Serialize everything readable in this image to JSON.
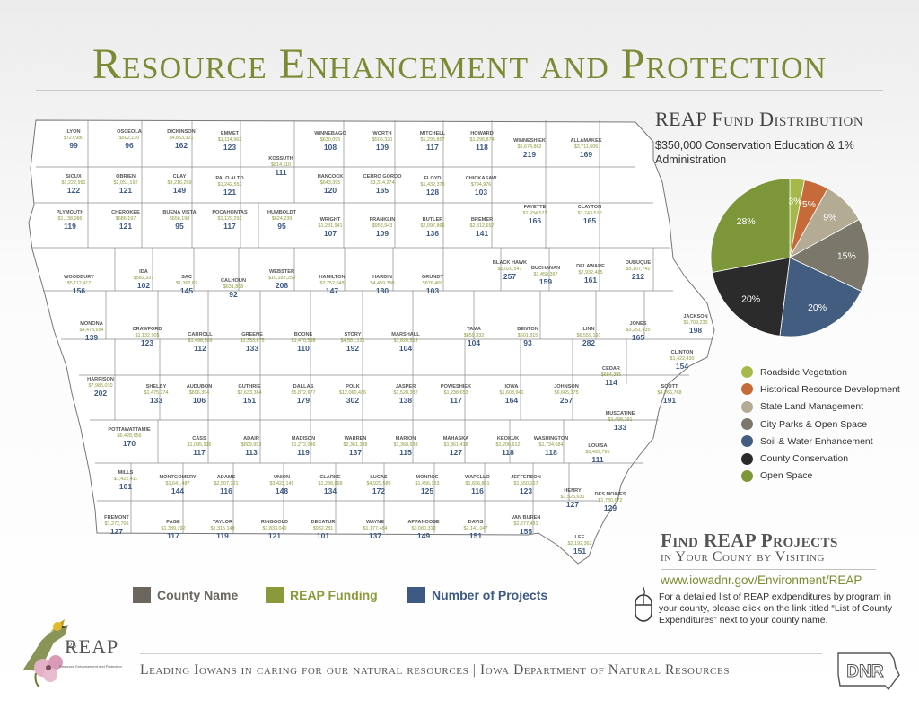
{
  "title": "Resource Enhancement and Protection",
  "colors": {
    "title": "#7d8a34",
    "county_name": "#555555",
    "funding": "#8a9a3a",
    "projects": "#3d5a85"
  },
  "map_legend": [
    {
      "label": "County Name",
      "color": "#6b675f"
    },
    {
      "label": "REAP Funding",
      "color": "#8a9a3a"
    },
    {
      "label": "Number of Projects",
      "color": "#3d5a85"
    }
  ],
  "counties": [
    {
      "name": "LYON",
      "funding": "$727,980",
      "projects": "99"
    },
    {
      "name": "OSCEOLA",
      "funding": "$502,130",
      "projects": "96"
    },
    {
      "name": "DICKINSON",
      "funding": "$4,853,321",
      "projects": "162"
    },
    {
      "name": "EMMET",
      "funding": "$1,114,962",
      "projects": "123"
    },
    {
      "name": "KOSSUTH",
      "funding": "$814,110",
      "projects": "111"
    },
    {
      "name": "WINNEBAGO",
      "funding": "$630,095",
      "projects": "108"
    },
    {
      "name": "WORTH",
      "funding": "$505,320",
      "projects": "109"
    },
    {
      "name": "MITCHELL",
      "funding": "$1,295,857",
      "projects": "117"
    },
    {
      "name": "HOWARD",
      "funding": "$1,296,874",
      "projects": "118"
    },
    {
      "name": "WINNESHIEK",
      "funding": "$5,674,862",
      "projects": "219"
    },
    {
      "name": "ALLAMAKEE",
      "funding": "$3,711,606",
      "projects": "169"
    },
    {
      "name": "SIOUX",
      "funding": "$1,222,991",
      "projects": "122"
    },
    {
      "name": "OBRIEN",
      "funding": "$2,051,192",
      "projects": "121"
    },
    {
      "name": "CLAY",
      "funding": "$3,216,269",
      "projects": "149"
    },
    {
      "name": "PALO ALTO",
      "funding": "$1,242,553",
      "projects": "121"
    },
    {
      "name": "HANCOCK",
      "funding": "$643,395",
      "projects": "120"
    },
    {
      "name": "CERRO GORDO",
      "funding": "$3,314,274",
      "projects": "165"
    },
    {
      "name": "FLOYD",
      "funding": "$1,432,370",
      "projects": "128"
    },
    {
      "name": "CHICKASAW",
      "funding": "$794,976",
      "projects": "103"
    },
    {
      "name": "FAYETTE",
      "funding": "$1,934,572",
      "projects": "166"
    },
    {
      "name": "CLAYTON",
      "funding": "$3,743,510",
      "projects": "165"
    },
    {
      "name": "PLYMOUTH",
      "funding": "$1,138,086",
      "projects": "119"
    },
    {
      "name": "CHEROKEE",
      "funding": "$686,197",
      "projects": "121"
    },
    {
      "name": "BUENA VISTA",
      "funding": "$656,198",
      "projects": "95"
    },
    {
      "name": "POCAHONTAS",
      "funding": "$1,129,292",
      "projects": "117"
    },
    {
      "name": "HUMBOLDT",
      "funding": "$624,239",
      "projects": "95"
    },
    {
      "name": "WRIGHT",
      "funding": "$1,281,941",
      "projects": "107"
    },
    {
      "name": "FRANKLIN",
      "funding": "$958,943",
      "projects": "109"
    },
    {
      "name": "BUTLER",
      "funding": "$2,097,866",
      "projects": "136"
    },
    {
      "name": "BREMER",
      "funding": "$2,812,657",
      "projects": "141"
    },
    {
      "name": "BLACK HAWK",
      "funding": "$6,020,547",
      "projects": "257"
    },
    {
      "name": "BUCHANAN",
      "funding": "$1,458,367",
      "projects": "159"
    },
    {
      "name": "DELAWARE",
      "funding": "$2,932,465",
      "projects": "161"
    },
    {
      "name": "DUBUQUE",
      "funding": "$5,107,742",
      "projects": "212"
    },
    {
      "name": "WOODBURY",
      "funding": "$5,112,417",
      "projects": "156"
    },
    {
      "name": "IDA",
      "funding": "$582,337",
      "projects": "102"
    },
    {
      "name": "SAC",
      "funding": "$1,362,69",
      "projects": "145"
    },
    {
      "name": "CALHOUN",
      "funding": "$631,858",
      "projects": "92"
    },
    {
      "name": "WEBSTER",
      "funding": "$10,183,259",
      "projects": "208"
    },
    {
      "name": "HAMILTON",
      "funding": "$2,752,048",
      "projects": "147"
    },
    {
      "name": "HARDIN",
      "funding": "$4,459,390",
      "projects": "180"
    },
    {
      "name": "GRUNDY",
      "funding": "$876,468",
      "projects": "103"
    },
    {
      "name": "MONONA",
      "funding": "$4,478,654",
      "projects": "139"
    },
    {
      "name": "CRAWFORD",
      "funding": "$1,132,905",
      "projects": "123"
    },
    {
      "name": "CARROLL",
      "funding": "$1,498,509",
      "projects": "112"
    },
    {
      "name": "GREENE",
      "funding": "$1,353,875",
      "projects": "133"
    },
    {
      "name": "BOONE",
      "funding": "$1,470,598",
      "projects": "110"
    },
    {
      "name": "STORY",
      "funding": "$4,581,121",
      "projects": "192"
    },
    {
      "name": "MARSHALL",
      "funding": "$1,820,513",
      "projects": "104"
    },
    {
      "name": "TAMA",
      "funding": "$859,332",
      "projects": "104"
    },
    {
      "name": "BENTON",
      "funding": "$601,815",
      "projects": "93"
    },
    {
      "name": "LINN",
      "funding": "$6,559,191",
      "projects": "282"
    },
    {
      "name": "JONES",
      "funding": "$3,251,435",
      "projects": "165"
    },
    {
      "name": "JACKSON",
      "funding": "$5,709,230",
      "projects": "198"
    },
    {
      "name": "CLINTON",
      "funding": "$1,422,430",
      "projects": "154"
    },
    {
      "name": "HARRISON",
      "funding": "$7,985,010",
      "projects": "202"
    },
    {
      "name": "SHELBY",
      "funding": "$1,475,374",
      "projects": "133"
    },
    {
      "name": "AUDUBON",
      "funding": "$896,394",
      "projects": "106"
    },
    {
      "name": "GUTHRIE",
      "funding": "$2,633,384",
      "projects": "151"
    },
    {
      "name": "DALLAS",
      "funding": "$5,872,677",
      "projects": "179"
    },
    {
      "name": "POLK",
      "funding": "$12,060,436",
      "projects": "302"
    },
    {
      "name": "JASPER",
      "funding": "$1,528,332",
      "projects": "138"
    },
    {
      "name": "POWESHIEK",
      "funding": "$1,238,653",
      "projects": "117"
    },
    {
      "name": "IOWA",
      "funding": "$1,603,941",
      "projects": "164"
    },
    {
      "name": "JOHNSON",
      "funding": "$6,665,375",
      "projects": "257"
    },
    {
      "name": "CEDAR",
      "funding": "$684,385",
      "projects": "114"
    },
    {
      "name": "SCOTT",
      "funding": "$4,266,768",
      "projects": "191"
    },
    {
      "name": "MUSCATINE",
      "funding": "$1,498,291",
      "projects": "133"
    },
    {
      "name": "POTTAWATTAMIE",
      "funding": "$6,428,656",
      "projects": "170"
    },
    {
      "name": "CASS",
      "funding": "$1,095,916",
      "projects": "117"
    },
    {
      "name": "ADAIR",
      "funding": "$809,993",
      "projects": "113"
    },
    {
      "name": "MADISON",
      "funding": "$1,272,046",
      "projects": "119"
    },
    {
      "name": "WARREN",
      "funding": "$2,361,338",
      "projects": "137"
    },
    {
      "name": "MARION",
      "funding": "$1,368,638",
      "projects": "115"
    },
    {
      "name": "MAHASKA",
      "funding": "$1,361,418",
      "projects": "127"
    },
    {
      "name": "KEOKUK",
      "funding": "$1,206,612",
      "projects": "118"
    },
    {
      "name": "WASHINGTON",
      "funding": "$1,734,684",
      "projects": "118"
    },
    {
      "name": "LOUISA",
      "funding": "$1,499,795",
      "projects": "111"
    },
    {
      "name": "MILLS",
      "funding": "$1,422,411",
      "projects": "101"
    },
    {
      "name": "MONTGOMERY",
      "funding": "$1,641,487",
      "projects": "144"
    },
    {
      "name": "ADAMS",
      "funding": "$2,507,321",
      "projects": "116"
    },
    {
      "name": "UNION",
      "funding": "$3,423,145",
      "projects": "148"
    },
    {
      "name": "CLARKE",
      "funding": "$1,288,068",
      "projects": "134"
    },
    {
      "name": "LUCAS",
      "funding": "$4,929,589",
      "projects": "172"
    },
    {
      "name": "MONROE",
      "funding": "$1,456,153",
      "projects": "125"
    },
    {
      "name": "WAPELLO",
      "funding": "$1,696,861",
      "projects": "116"
    },
    {
      "name": "JEFFERSON",
      "funding": "$1,550,167",
      "projects": "123"
    },
    {
      "name": "HENRY",
      "funding": "$1,525,631",
      "projects": "127"
    },
    {
      "name": "DES MOINES",
      "funding": "$1,730,672",
      "projects": "129"
    },
    {
      "name": "FREMONT",
      "funding": "$1,272,706",
      "projects": "127"
    },
    {
      "name": "PAGE",
      "funding": "$1,339,192",
      "projects": "117"
    },
    {
      "name": "TAYLOR",
      "funding": "$1,315,149",
      "projects": "119"
    },
    {
      "name": "RINGGOLD",
      "funding": "$1,833,040",
      "projects": "121"
    },
    {
      "name": "DECATUR",
      "funding": "$932,281",
      "projects": "101"
    },
    {
      "name": "WAYNE",
      "funding": "$1,177,484",
      "projects": "137"
    },
    {
      "name": "APPANOOSE",
      "funding": "$3,080,310",
      "projects": "149"
    },
    {
      "name": "DAVIS",
      "funding": "$2,141,047",
      "projects": "151"
    },
    {
      "name": "VAN BUREN",
      "funding": "$2,277,431",
      "projects": "155"
    },
    {
      "name": "LEE",
      "funding": "$2,192,362",
      "projects": "151"
    }
  ],
  "fund_distribution": {
    "title": "REAP Fund Distribution",
    "note": "$350,000 Conservation Education & 1% Administration",
    "slices": [
      {
        "label": "Roadside Vegetation",
        "percent": 3,
        "percent_label": "3%",
        "color": "#a6b84a"
      },
      {
        "label": "Historical Resource Development",
        "percent": 5,
        "percent_label": "5%",
        "color": "#c76a3a"
      },
      {
        "label": "State Land Management",
        "percent": 9,
        "percent_label": "9%",
        "color": "#b3ab94"
      },
      {
        "label": "City Parks & Open Space",
        "percent": 15,
        "percent_label": "15%",
        "color": "#7b776b"
      },
      {
        "label": "Soil & Water Enhancement",
        "percent": 20,
        "percent_label": "20%",
        "color": "#435d80"
      },
      {
        "label": "County Conservation",
        "percent": 20,
        "percent_label": "20%",
        "color": "#2b2b2b"
      },
      {
        "label": "Open Space",
        "percent": 28,
        "percent_label": "28%",
        "color": "#7d963a"
      }
    ]
  },
  "find": {
    "title": "Find REAP Projects",
    "subtitle": "in Your Couny by Visiting",
    "url": "www.iowadnr.gov/Environment/REAP",
    "description": "For a detailed list of REAP exdpenditures by program in your county, please click on the link titled “List of County Expenditures” next to your county name."
  },
  "logo": {
    "text": "REAP",
    "subtext": "Resource Enhancement and Protection",
    "anniversary": "25"
  },
  "footer": {
    "text": "Leading Iowans in caring for our natural resources  |  Iowa Department of Natural Resources"
  },
  "dnr_logo": {
    "text": "DNR"
  }
}
